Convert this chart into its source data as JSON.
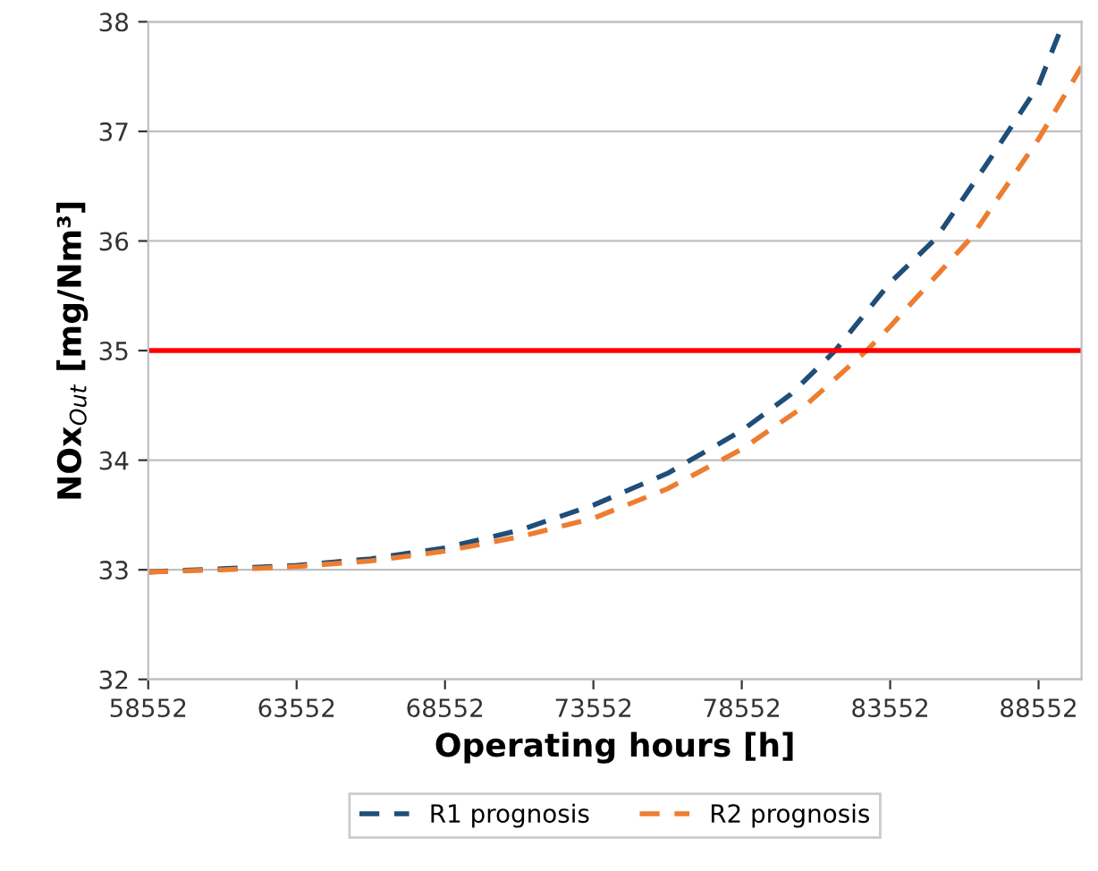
{
  "chart_data": {
    "type": "line",
    "xlabel": "Operating hours [h]",
    "ylabel": "NOx$_{Out}$ [mg/Nm³]",
    "xlim": [
      58552,
      90000
    ],
    "xticks": [
      58552,
      63552,
      68552,
      73552,
      78552,
      83552,
      88552
    ],
    "ylim": [
      32,
      38
    ],
    "yticks": [
      32,
      33,
      34,
      35,
      36,
      37,
      38
    ],
    "grid": "y",
    "legend": "bottom",
    "line_style": "dashed",
    "marker": "none",
    "ref_lines": [
      {
        "axis": "y",
        "value": 35,
        "color": "#ff0000"
      }
    ],
    "series": [
      {
        "name": "R1 prognosis",
        "color": "#1f4e79",
        "x": [
          58552,
          61052,
          63552,
          66052,
          68552,
          71052,
          73552,
          76052,
          78552,
          80200,
          81700,
          83552,
          85086,
          86800,
          88552,
          89313
        ],
        "values": [
          32.98,
          33.01,
          33.04,
          33.1,
          33.2,
          33.36,
          33.59,
          33.88,
          34.27,
          34.6,
          35.0,
          35.62,
          36.02,
          36.7,
          37.42,
          37.94
        ]
      },
      {
        "name": "R2 prognosis",
        "color": "#ed7d31",
        "x": [
          58552,
          61052,
          63552,
          66052,
          68552,
          71052,
          73552,
          76052,
          78552,
          80700,
          82761,
          83552,
          86247,
          88552,
          90000
        ],
        "values": [
          32.98,
          33.0,
          33.03,
          33.08,
          33.17,
          33.3,
          33.47,
          33.74,
          34.1,
          34.5,
          35.0,
          35.22,
          36.02,
          36.93,
          37.59
        ]
      }
    ]
  }
}
